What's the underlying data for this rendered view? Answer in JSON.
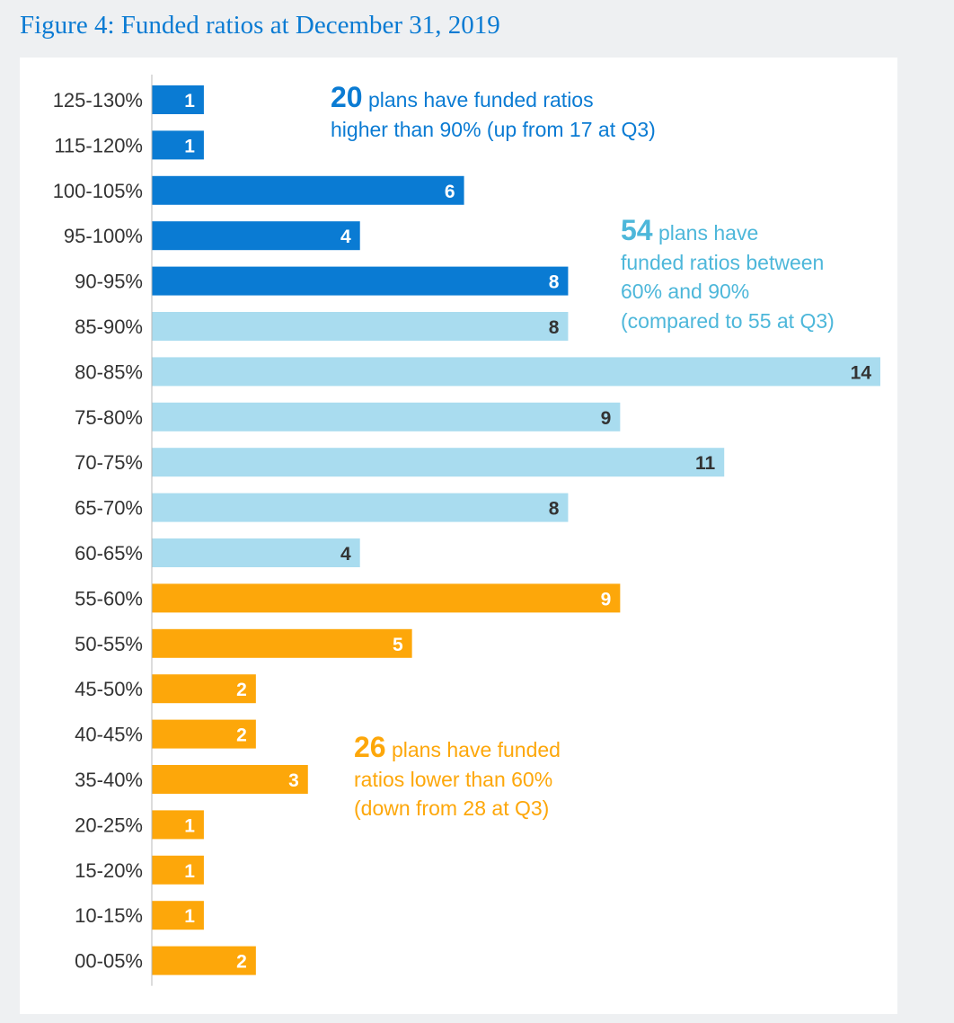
{
  "title": "Figure 4: Funded ratios at December 31, 2019",
  "colors": {
    "title": "#0a7bd3",
    "high": "#0a7bd3",
    "mid": "#a9dcef",
    "low": "#fda70a",
    "mid_label": "#333333",
    "annotation_mid": "#4db7da"
  },
  "chart_data": {
    "type": "bar",
    "orientation": "horizontal",
    "categories": [
      "125-130%",
      "115-120%",
      "100-105%",
      "95-100%",
      "90-95%",
      "85-90%",
      "80-85%",
      "75-80%",
      "70-75%",
      "65-70%",
      "60-65%",
      "55-60%",
      "50-55%",
      "45-50%",
      "40-45%",
      "35-40%",
      "20-25%",
      "15-20%",
      "10-15%",
      "00-05%"
    ],
    "values": [
      1,
      1,
      6,
      4,
      8,
      8,
      14,
      9,
      11,
      8,
      4,
      9,
      5,
      2,
      2,
      3,
      1,
      1,
      1,
      2
    ],
    "groups": [
      "high",
      "high",
      "high",
      "high",
      "high",
      "mid",
      "mid",
      "mid",
      "mid",
      "mid",
      "mid",
      "low",
      "low",
      "low",
      "low",
      "low",
      "low",
      "low",
      "low",
      "low"
    ],
    "xlim": [
      0,
      14
    ],
    "grid": false,
    "legend": "none"
  },
  "annotations": {
    "high": {
      "number": "20",
      "line1": "plans have funded ratios",
      "line2": "higher than 90% (up from 17 at Q3)"
    },
    "mid": {
      "number": "54",
      "line1": "plans have",
      "line2": "funded ratios between",
      "line3": "60% and 90%",
      "line4": "(compared to 55 at Q3)"
    },
    "low": {
      "number": "26",
      "line1": "plans have funded",
      "line2": "ratios lower than 60%",
      "line3": "(down from 28 at Q3)"
    }
  }
}
